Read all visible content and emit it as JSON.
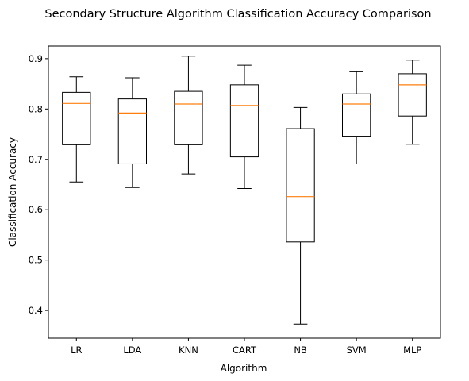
{
  "chart_data": {
    "type": "boxplot",
    "title": "Secondary Structure Algorithm Classification Accuracy Comparison",
    "xlabel": "Algorithm",
    "ylabel": "Classification Accuracy",
    "ylim": [
      0.345,
      0.925
    ],
    "yticks": [
      0.4,
      0.5,
      0.6,
      0.7,
      0.8,
      0.9
    ],
    "ytick_labels": [
      "0.4",
      "0.5",
      "0.6",
      "0.7",
      "0.8",
      "0.9"
    ],
    "grid": false,
    "categories": [
      "LR",
      "LDA",
      "KNN",
      "CART",
      "NB",
      "SVM",
      "MLP"
    ],
    "boxes": [
      {
        "label": "LR",
        "whisker_low": 0.655,
        "q1": 0.729,
        "median": 0.811,
        "q3": 0.833,
        "whisker_high": 0.864
      },
      {
        "label": "LDA",
        "whisker_low": 0.644,
        "q1": 0.691,
        "median": 0.792,
        "q3": 0.82,
        "whisker_high": 0.862
      },
      {
        "label": "KNN",
        "whisker_low": 0.671,
        "q1": 0.729,
        "median": 0.81,
        "q3": 0.835,
        "whisker_high": 0.905
      },
      {
        "label": "CART",
        "whisker_low": 0.642,
        "q1": 0.705,
        "median": 0.807,
        "q3": 0.848,
        "whisker_high": 0.887
      },
      {
        "label": "NB",
        "whisker_low": 0.373,
        "q1": 0.536,
        "median": 0.626,
        "q3": 0.761,
        "whisker_high": 0.803
      },
      {
        "label": "SVM",
        "whisker_low": 0.691,
        "q1": 0.746,
        "median": 0.81,
        "q3": 0.83,
        "whisker_high": 0.874
      },
      {
        "label": "MLP",
        "whisker_low": 0.73,
        "q1": 0.786,
        "median": 0.848,
        "q3": 0.87,
        "whisker_high": 0.897
      }
    ],
    "colors": {
      "box": "#000000",
      "median": "#ff7f0e"
    }
  }
}
